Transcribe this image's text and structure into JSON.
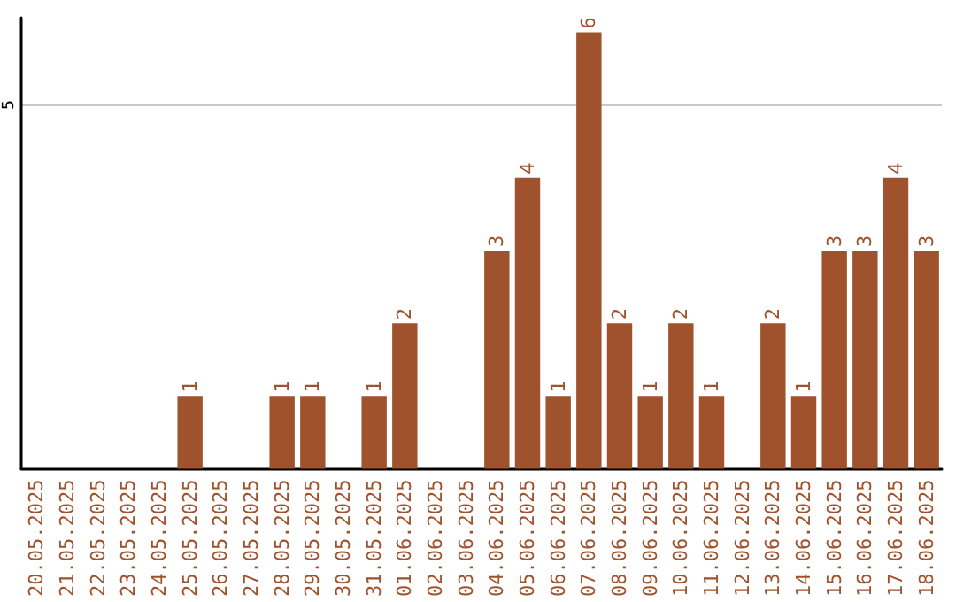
{
  "chart_data": {
    "type": "bar",
    "categories": [
      "20.05.2025",
      "21.05.2025",
      "22.05.2025",
      "23.05.2025",
      "24.05.2025",
      "25.05.2025",
      "26.05.2025",
      "27.05.2025",
      "28.05.2025",
      "29.05.2025",
      "30.05.2025",
      "31.05.2025",
      "01.06.2025",
      "02.06.2025",
      "03.06.2025",
      "04.06.2025",
      "05.06.2025",
      "06.06.2025",
      "07.06.2025",
      "08.06.2025",
      "09.06.2025",
      "10.06.2025",
      "11.06.2025",
      "12.06.2025",
      "13.06.2025",
      "14.06.2025",
      "15.06.2025",
      "16.06.2025",
      "17.06.2025",
      "18.06.2025"
    ],
    "values": [
      0,
      0,
      0,
      0,
      0,
      1,
      0,
      0,
      1,
      1,
      0,
      1,
      2,
      0,
      0,
      3,
      4,
      1,
      6,
      2,
      1,
      2,
      1,
      0,
      2,
      1,
      3,
      3,
      4,
      3
    ],
    "value_labels": [
      null,
      null,
      null,
      null,
      null,
      "1",
      null,
      null,
      "1",
      "1",
      null,
      "1",
      "2",
      null,
      null,
      "3",
      "4",
      "1",
      "6",
      "2",
      "1",
      "2",
      "1",
      null,
      "2",
      "1",
      "3",
      "3",
      "4",
      "3"
    ],
    "color": "#a0522d",
    "ylim": [
      0,
      6.2
    ],
    "yticks": [
      5
    ],
    "grid": "y"
  }
}
